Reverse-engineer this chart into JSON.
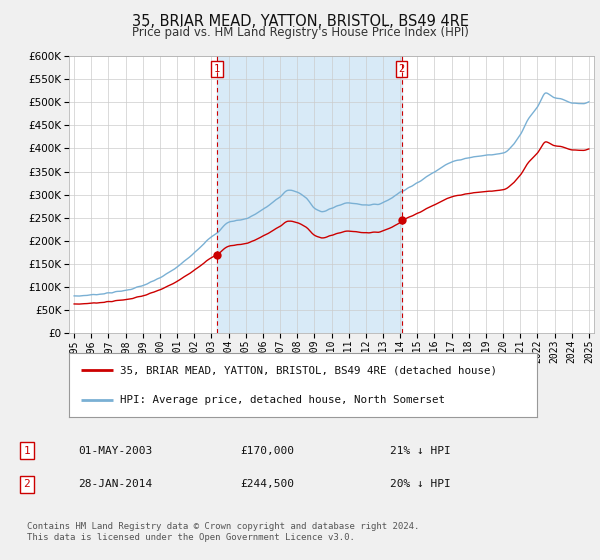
{
  "title": "35, BRIAR MEAD, YATTON, BRISTOL, BS49 4RE",
  "subtitle": "Price paid vs. HM Land Registry's House Price Index (HPI)",
  "legend_property": "35, BRIAR MEAD, YATTON, BRISTOL, BS49 4RE (detached house)",
  "legend_hpi": "HPI: Average price, detached house, North Somerset",
  "footnote1": "Contains HM Land Registry data © Crown copyright and database right 2024.",
  "footnote2": "This data is licensed under the Open Government Licence v3.0.",
  "marker1_date": "01-MAY-2003",
  "marker1_price": 170000,
  "marker1_label": "21% ↓ HPI",
  "marker1_year": 2003.33,
  "marker2_date": "28-JAN-2014",
  "marker2_price": 244500,
  "marker2_label": "20% ↓ HPI",
  "marker2_year": 2014.08,
  "property_color": "#cc0000",
  "hpi_color": "#7ab0d4",
  "shaded_color": "#d8eaf7",
  "ylim_max": 600000,
  "xlim_start": 1994.7,
  "xlim_end": 2025.3,
  "yticks": [
    0,
    50000,
    100000,
    150000,
    200000,
    250000,
    300000,
    350000,
    400000,
    450000,
    500000,
    550000,
    600000
  ],
  "background_color": "#f0f0f0",
  "plot_bg_color": "#ffffff",
  "hpi_anchors_x": [
    1995.0,
    1996.0,
    1997.0,
    1998.0,
    1999.0,
    2000.0,
    2001.0,
    2002.0,
    2003.0,
    2003.3,
    2004.0,
    2005.0,
    2006.0,
    2007.0,
    2007.5,
    2008.0,
    2008.5,
    2009.0,
    2009.5,
    2010.0,
    2010.5,
    2011.0,
    2011.5,
    2012.0,
    2012.5,
    2013.0,
    2013.5,
    2014.08,
    2015.0,
    2016.0,
    2017.0,
    2018.0,
    2019.0,
    2020.0,
    2021.0,
    2021.5,
    2022.0,
    2022.5,
    2023.0,
    2023.5,
    2024.0,
    2024.5,
    2025.0
  ],
  "hpi_anchors_v": [
    80000,
    83000,
    87000,
    93000,
    103000,
    120000,
    143000,
    175000,
    208000,
    216000,
    240000,
    248000,
    268000,
    295000,
    310000,
    305000,
    293000,
    272000,
    263000,
    270000,
    278000,
    282000,
    280000,
    278000,
    278000,
    283000,
    293000,
    307000,
    325000,
    350000,
    370000,
    380000,
    385000,
    390000,
    430000,
    465000,
    490000,
    520000,
    510000,
    505000,
    498000,
    496000,
    500000
  ]
}
